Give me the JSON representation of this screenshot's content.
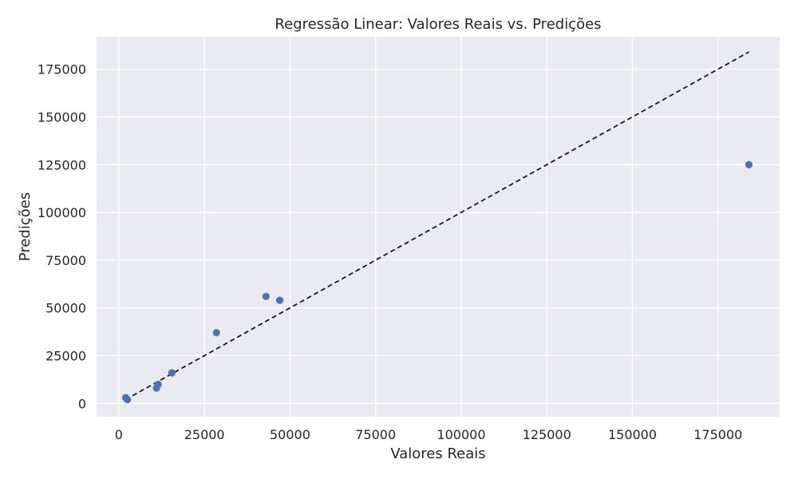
{
  "chart_data": {
    "type": "scatter",
    "title": "Regressão Linear: Valores Reais vs. Predições",
    "xlabel": "Valores Reais",
    "ylabel": "Predições",
    "xlim": [
      -6500,
      193000
    ],
    "ylim": [
      -7000,
      192000
    ],
    "xticks": [
      0,
      25000,
      50000,
      75000,
      100000,
      125000,
      150000,
      175000
    ],
    "yticks": [
      0,
      25000,
      50000,
      75000,
      100000,
      125000,
      150000,
      175000
    ],
    "grid": true,
    "points": [
      {
        "x": 2000,
        "y": 3000
      },
      {
        "x": 2500,
        "y": 2000
      },
      {
        "x": 11000,
        "y": 8000
      },
      {
        "x": 11500,
        "y": 10000
      },
      {
        "x": 15500,
        "y": 16000
      },
      {
        "x": 28500,
        "y": 37000
      },
      {
        "x": 43000,
        "y": 56000
      },
      {
        "x": 47000,
        "y": 54000
      },
      {
        "x": 184000,
        "y": 125000
      }
    ],
    "reference_line": {
      "from": [
        2000,
        2000
      ],
      "to": [
        184000,
        184000
      ],
      "style": "dashed"
    },
    "colors": {
      "points": "#4c72b0",
      "line": "#1a1a1a",
      "background": "#eaeaf2"
    }
  }
}
